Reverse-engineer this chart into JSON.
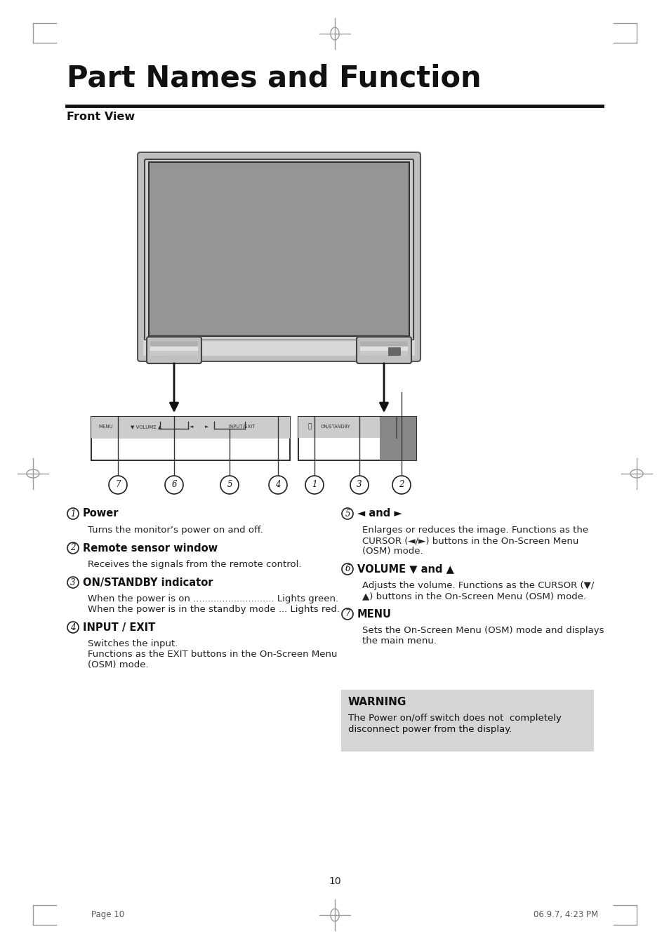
{
  "title": "Part Names and Function",
  "subtitle": "Front View",
  "bg_color": "#ffffff",
  "page_number": "10",
  "page_date": "06.9.7, 4:23 PM",
  "items_left": [
    {
      "num": "1",
      "head": "Power",
      "body": "Turns the monitor’s power on and off."
    },
    {
      "num": "2",
      "head": "Remote sensor window",
      "body": "Receives the signals from the remote control."
    },
    {
      "num": "3",
      "head": "ON/STANDBY indicator",
      "body": "When the power is on ............................ Lights green.\nWhen the power is in the standby mode ... Lights red."
    },
    {
      "num": "4",
      "head": "INPUT / EXIT",
      "body": "Switches the input.\nFunctions as the EXIT buttons in the On-Screen Menu\n(OSM) mode."
    }
  ],
  "items_right": [
    {
      "num": "5",
      "head": "◄ and ►",
      "body": "Enlarges or reduces the image. Functions as the\nCURSOR (◄/►) buttons in the On-Screen Menu\n(OSM) mode."
    },
    {
      "num": "6",
      "head": "VOLUME ▼ and ▲",
      "body": "Adjusts the volume. Functions as the CURSOR (▼/\n▲) buttons in the On-Screen Menu (OSM) mode."
    },
    {
      "num": "7",
      "head": "MENU",
      "body": "Sets the On-Screen Menu (OSM) mode and displays\nthe main menu."
    }
  ],
  "warning_title": "WARNING",
  "warning_body": "The Power on/off switch does not  completely\ndisconnect power from the display.",
  "reg_color": "#999999",
  "title_color": "#111111",
  "text_color": "#111111",
  "body_text_color": "#333333"
}
